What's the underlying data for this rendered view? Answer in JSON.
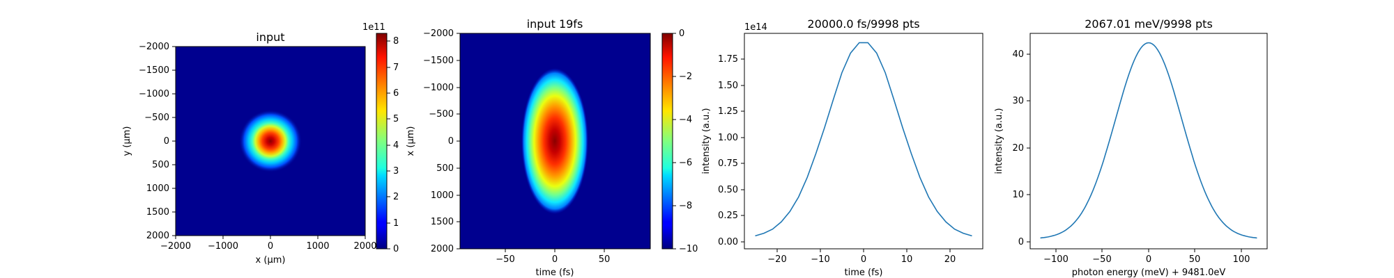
{
  "chart_data": [
    {
      "type": "heatmap",
      "title": "input",
      "xlabel": "x (μm)",
      "ylabel": "y (μm)",
      "xlim": [
        -2000,
        2000
      ],
      "ylim": [
        2000,
        -2000
      ],
      "x_ticks": [
        "−2000",
        "−1000",
        "0",
        "1000",
        "2000"
      ],
      "y_ticks": [
        "−2000",
        "−1500",
        "−1000",
        "−500",
        "0",
        "500",
        "1000",
        "1500",
        "2000"
      ],
      "colormap": "jet",
      "spot_center": [
        0,
        0
      ],
      "spot_sigma": [
        210,
        210
      ],
      "colorbar": {
        "range": [
          0,
          830000000000.0
        ],
        "ticks": [
          "0",
          "1",
          "2",
          "3",
          "4",
          "5",
          "6",
          "7",
          "8"
        ],
        "offset_label": "1e11"
      }
    },
    {
      "type": "heatmap",
      "title": "input 19fs",
      "xlabel": "time (fs)",
      "ylabel": "x (μm)",
      "xlim": [
        -95,
        95
      ],
      "ylim": [
        2000,
        -2000
      ],
      "x_ticks": [
        "−50",
        "0",
        "50"
      ],
      "y_ticks": [
        "−2000",
        "−1500",
        "−1000",
        "−500",
        "0",
        "500",
        "1000",
        "1500",
        "2000"
      ],
      "colormap": "jet",
      "log_scale": true,
      "spot_center": [
        0,
        0
      ],
      "spot_sigma": [
        17,
        630
      ],
      "colorbar": {
        "range": [
          -10,
          0
        ],
        "ticks": [
          "0",
          "−2",
          "−4",
          "−6",
          "−8",
          "−10"
        ]
      }
    },
    {
      "type": "line",
      "title": "20000.0 fs/9998 pts",
      "xlabel": "time (fs)",
      "ylabel": "intensity (a.u.)",
      "xlim": [
        -27.5,
        27.5
      ],
      "ylim": [
        -10000000000000.0,
        198000000000000.0
      ],
      "offset_label": "1e14",
      "x_ticks": [
        "−20",
        "−10",
        "0",
        "10",
        "20"
      ],
      "y_ticks": [
        "0.00",
        "0.25",
        "0.50",
        "0.75",
        "1.00",
        "1.25",
        "1.50",
        "1.75"
      ],
      "series": [
        {
          "color": "#1f77b4",
          "x": [
            -25,
            -23,
            -21,
            -19,
            -17,
            -15,
            -13,
            -11,
            -9,
            -7,
            -5,
            -3,
            -1,
            1,
            3,
            5,
            7,
            9,
            11,
            13,
            15,
            17,
            19,
            21,
            23,
            25
          ],
          "y": [
            2500000000000.0,
            5000000000000.0,
            9000000000000.0,
            16000000000000.0,
            26000000000000.0,
            40000000000000.0,
            59000000000000.0,
            82000000000000.0,
            107000000000000.0,
            134000000000000.0,
            160000000000000.0,
            179000000000000.0,
            189000000000000.0,
            189000000000000.0,
            179000000000000.0,
            160000000000000.0,
            134000000000000.0,
            107000000000000.0,
            82000000000000.0,
            59000000000000.0,
            40000000000000.0,
            26000000000000.0,
            16000000000000.0,
            9000000000000.0,
            5000000000000.0,
            2500000000000.0
          ]
        }
      ]
    },
    {
      "type": "line",
      "title": "2067.01 meV/9998 pts",
      "xlabel": "photon energy (meV) + 9481.0eV",
      "ylabel": "intensity (a.u.)",
      "xlim": [
        -128,
        128
      ],
      "ylim": [
        -2.1,
        43.8
      ],
      "x_ticks": [
        "−100",
        "−50",
        "0",
        "50",
        "100"
      ],
      "y_ticks": [
        "0",
        "10",
        "20",
        "30",
        "40"
      ],
      "series": [
        {
          "color": "#1f77b4",
          "gaussian": {
            "amplitude": 41.8,
            "sigma": 36,
            "xmin": -117,
            "xmax": 117
          }
        }
      ]
    }
  ]
}
